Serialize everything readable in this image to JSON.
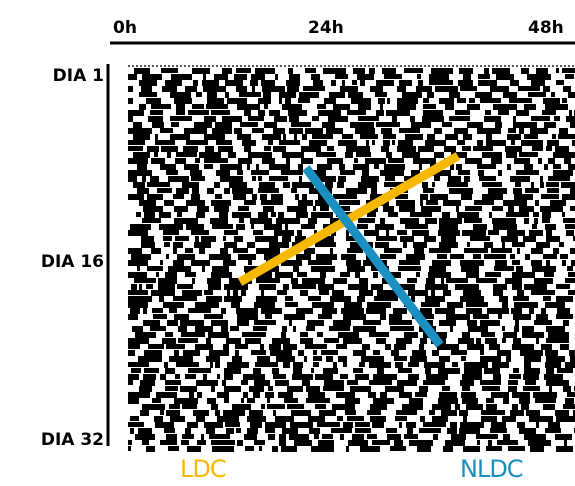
{
  "axis": {
    "top_labels": [
      "0h",
      "24h",
      "48h"
    ],
    "left_labels": [
      "DIA 1",
      "DIA 16",
      "DIA 32"
    ]
  },
  "legend": {
    "ldc": "LDC",
    "nldc": "NLDC"
  }
}
